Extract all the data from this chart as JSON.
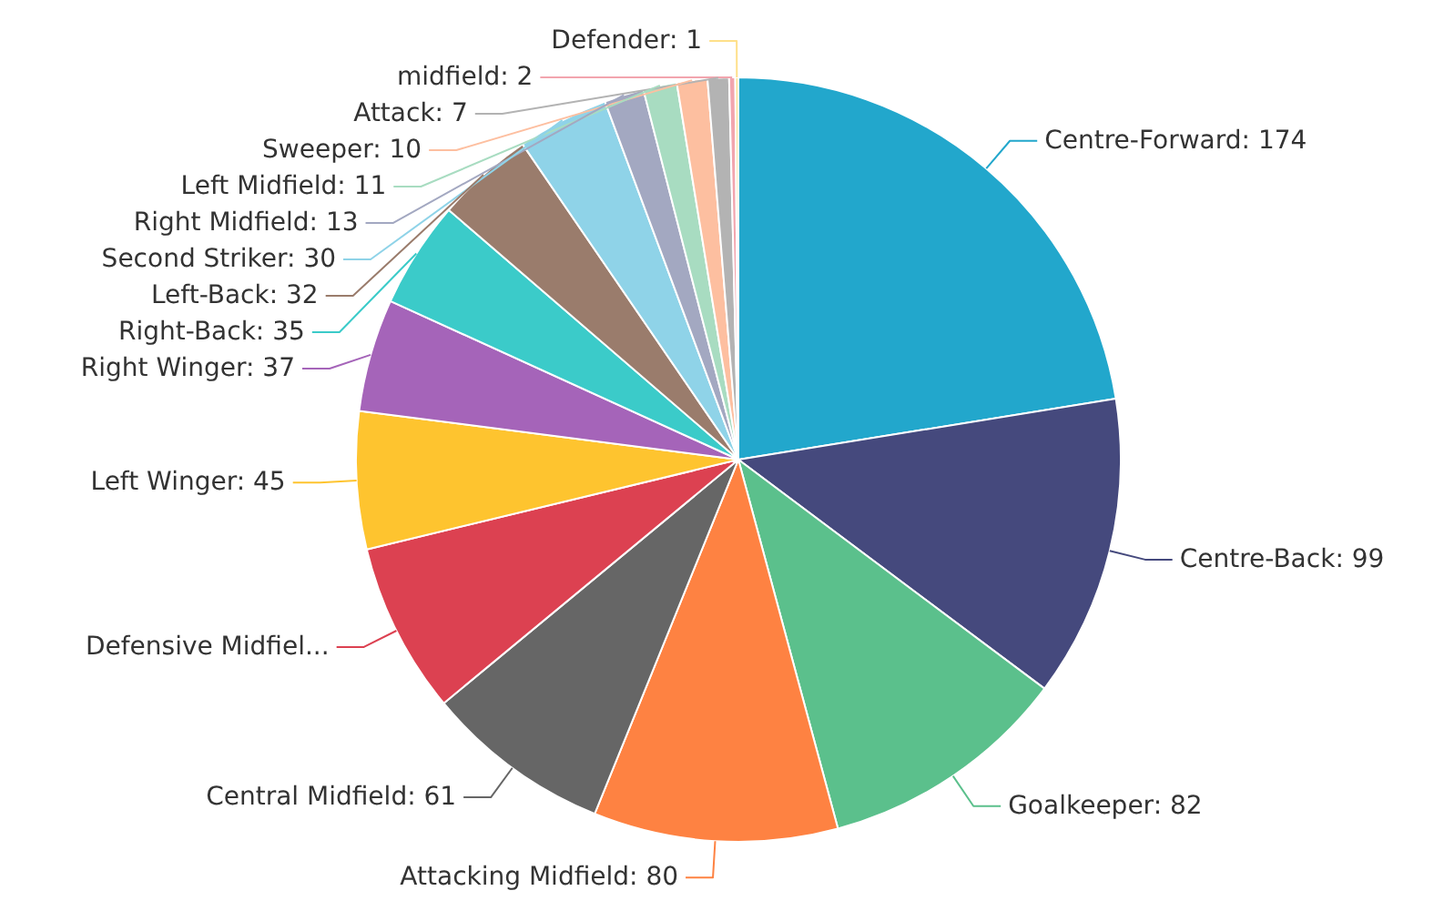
{
  "chart_data": {
    "type": "pie",
    "categories": [
      "Centre-Forward",
      "Centre-Back",
      "Goalkeeper",
      "Attacking Midfield",
      "Central Midfield",
      "Defensive Midfiel...",
      "Left Winger",
      "Right Winger",
      "Right-Back",
      "Left-Back",
      "Second Striker",
      "Right Midfield",
      "Left Midfield",
      "Sweeper",
      "Attack",
      "midfield",
      "Defender"
    ],
    "values": [
      174,
      99,
      82,
      80,
      61,
      56,
      45,
      37,
      35,
      32,
      30,
      13,
      11,
      10,
      7,
      2,
      1
    ],
    "value_labels": [
      "174",
      "99",
      "82",
      "80",
      "61",
      null,
      "45",
      "37",
      "35",
      "32",
      "30",
      "13",
      "11",
      "10",
      "7",
      "2",
      "1"
    ],
    "colors": [
      "#22a7cc",
      "#45497d",
      "#5bc08c",
      "#fe8242",
      "#666666",
      "#dc4151",
      "#fec42f",
      "#a564b9",
      "#3bcbc9",
      "#9a7c6c",
      "#8fd3e8",
      "#a3a8c1",
      "#a8dcc1",
      "#fdbfa0",
      "#b3b3b3",
      "#f2a5ae",
      "#fee08a"
    ]
  }
}
